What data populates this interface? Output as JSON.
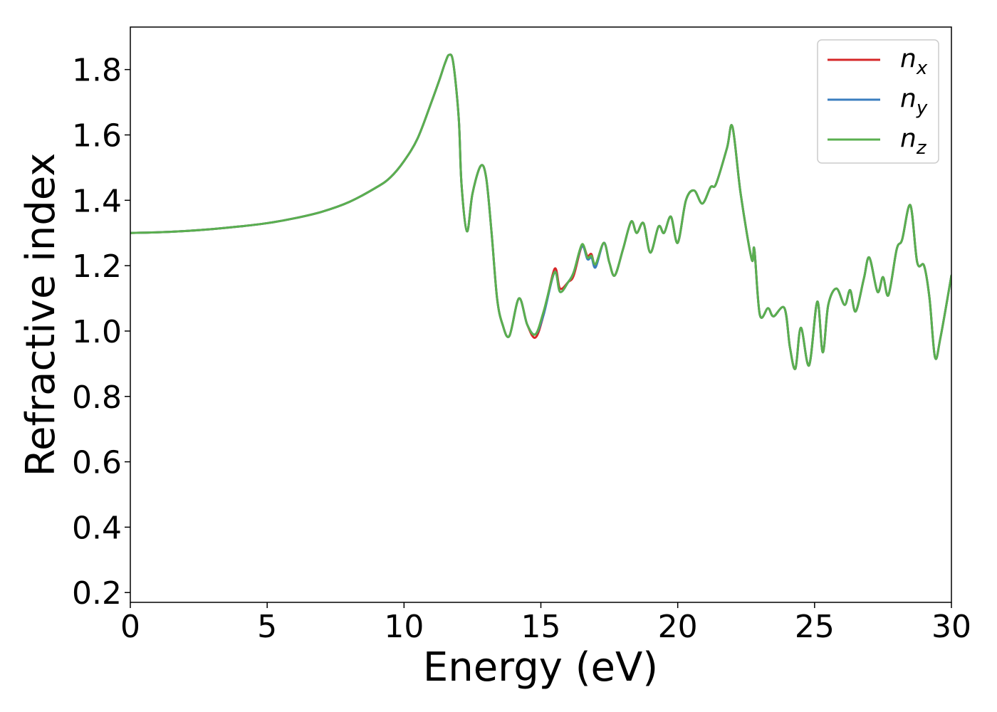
{
  "chart_data": {
    "type": "line",
    "xlabel": "Energy (eV)",
    "ylabel": "Refractive index",
    "xlim": [
      0,
      30
    ],
    "ylim": [
      0.17,
      1.93
    ],
    "xticks": [
      0,
      5,
      10,
      15,
      20,
      25,
      30
    ],
    "xtick_labels": [
      "0",
      "5",
      "10",
      "15",
      "20",
      "25",
      "30"
    ],
    "yticks": [
      0.2,
      0.4,
      0.6,
      0.8,
      1.0,
      1.2,
      1.4,
      1.6,
      1.8
    ],
    "ytick_labels": [
      "0.2",
      "0.4",
      "0.6",
      "0.8",
      "1.0",
      "1.2",
      "1.4",
      "1.6",
      "1.8"
    ],
    "grid": false,
    "legend_position": "top-right",
    "series": [
      {
        "name": "n_x",
        "base": "n",
        "sub": "x",
        "color": "#d62728",
        "x": [
          0,
          1,
          2,
          3,
          4,
          5,
          6,
          7,
          8,
          9,
          9.5,
          10,
          10.5,
          11,
          11.3,
          11.5,
          11.65,
          11.8,
          12.0,
          12.1,
          12.3,
          12.5,
          12.8,
          13.0,
          13.2,
          13.4,
          13.6,
          13.85,
          14.2,
          14.5,
          14.8,
          15.1,
          15.5,
          15.7,
          16.0,
          16.2,
          16.5,
          16.7,
          16.85,
          17.0,
          17.3,
          17.5,
          17.7,
          18.0,
          18.3,
          18.5,
          18.75,
          19.0,
          19.3,
          19.5,
          19.75,
          20.0,
          20.3,
          20.6,
          20.9,
          21.2,
          21.4,
          21.8,
          22.0,
          22.3,
          22.7,
          22.8,
          23.0,
          23.3,
          23.5,
          23.9,
          24.1,
          24.3,
          24.5,
          24.8,
          25.1,
          25.3,
          25.5,
          25.8,
          26.1,
          26.3,
          26.5,
          26.8,
          27.0,
          27.3,
          27.5,
          27.7,
          28.0,
          28.2,
          28.5,
          28.75,
          29.0,
          29.2,
          29.4,
          29.6,
          30.0
        ],
        "y": [
          1.3,
          1.302,
          1.306,
          1.312,
          1.32,
          1.33,
          1.345,
          1.365,
          1.395,
          1.44,
          1.47,
          1.52,
          1.59,
          1.7,
          1.77,
          1.82,
          1.845,
          1.82,
          1.65,
          1.45,
          1.305,
          1.42,
          1.505,
          1.47,
          1.3,
          1.1,
          1.02,
          0.985,
          1.1,
          1.02,
          0.98,
          1.05,
          1.19,
          1.13,
          1.15,
          1.17,
          1.26,
          1.23,
          1.235,
          1.2,
          1.27,
          1.21,
          1.17,
          1.25,
          1.335,
          1.3,
          1.33,
          1.24,
          1.32,
          1.3,
          1.35,
          1.27,
          1.4,
          1.43,
          1.39,
          1.44,
          1.45,
          1.56,
          1.625,
          1.42,
          1.22,
          1.25,
          1.05,
          1.07,
          1.045,
          1.07,
          0.95,
          0.885,
          1.01,
          0.895,
          1.09,
          0.935,
          1.08,
          1.13,
          1.08,
          1.125,
          1.06,
          1.16,
          1.225,
          1.12,
          1.165,
          1.11,
          1.25,
          1.28,
          1.385,
          1.21,
          1.2,
          1.1,
          0.92,
          0.98,
          1.17
        ]
      },
      {
        "name": "n_y",
        "base": "n",
        "sub": "y",
        "color": "#3a7ebf",
        "x": [
          0,
          1,
          2,
          3,
          4,
          5,
          6,
          7,
          8,
          9,
          9.5,
          10,
          10.5,
          11,
          11.3,
          11.5,
          11.65,
          11.8,
          12.0,
          12.1,
          12.3,
          12.5,
          12.8,
          13.0,
          13.2,
          13.4,
          13.6,
          13.85,
          14.2,
          14.5,
          14.8,
          15.1,
          15.5,
          15.7,
          16.0,
          16.2,
          16.5,
          16.7,
          16.85,
          17.0,
          17.3,
          17.5,
          17.7,
          18.0,
          18.3,
          18.5,
          18.75,
          19.0,
          19.3,
          19.5,
          19.75,
          20.0,
          20.3,
          20.6,
          20.9,
          21.2,
          21.4,
          21.8,
          22.0,
          22.3,
          22.7,
          22.8,
          23.0,
          23.3,
          23.5,
          23.9,
          24.1,
          24.3,
          24.5,
          24.8,
          25.1,
          25.3,
          25.5,
          25.8,
          26.1,
          26.3,
          26.5,
          26.8,
          27.0,
          27.3,
          27.5,
          27.7,
          28.0,
          28.2,
          28.5,
          28.75,
          29.0,
          29.2,
          29.4,
          29.6,
          30.0
        ],
        "y": [
          1.3,
          1.302,
          1.306,
          1.312,
          1.32,
          1.33,
          1.345,
          1.365,
          1.395,
          1.44,
          1.47,
          1.52,
          1.59,
          1.7,
          1.77,
          1.82,
          1.845,
          1.82,
          1.65,
          1.45,
          1.305,
          1.42,
          1.505,
          1.47,
          1.3,
          1.1,
          1.02,
          0.985,
          1.1,
          1.02,
          0.99,
          1.05,
          1.18,
          1.12,
          1.15,
          1.18,
          1.26,
          1.22,
          1.225,
          1.195,
          1.27,
          1.21,
          1.17,
          1.25,
          1.335,
          1.3,
          1.33,
          1.24,
          1.32,
          1.3,
          1.35,
          1.27,
          1.4,
          1.43,
          1.39,
          1.44,
          1.45,
          1.56,
          1.625,
          1.42,
          1.22,
          1.25,
          1.05,
          1.07,
          1.045,
          1.07,
          0.95,
          0.885,
          1.01,
          0.895,
          1.09,
          0.935,
          1.08,
          1.13,
          1.08,
          1.125,
          1.06,
          1.16,
          1.225,
          1.12,
          1.165,
          1.11,
          1.25,
          1.28,
          1.385,
          1.21,
          1.2,
          1.1,
          0.92,
          0.98,
          1.17
        ]
      },
      {
        "name": "n_z",
        "base": "n",
        "sub": "z",
        "color": "#5aaf4f",
        "x": [
          0,
          1,
          2,
          3,
          4,
          5,
          6,
          7,
          8,
          9,
          9.5,
          10,
          10.5,
          11,
          11.3,
          11.5,
          11.65,
          11.8,
          12.0,
          12.1,
          12.3,
          12.5,
          12.8,
          13.0,
          13.2,
          13.4,
          13.6,
          13.85,
          14.2,
          14.5,
          14.8,
          15.1,
          15.5,
          15.7,
          16.0,
          16.2,
          16.5,
          16.7,
          16.85,
          17.0,
          17.3,
          17.5,
          17.7,
          18.0,
          18.3,
          18.5,
          18.75,
          19.0,
          19.3,
          19.5,
          19.75,
          20.0,
          20.3,
          20.6,
          20.9,
          21.2,
          21.4,
          21.8,
          22.0,
          22.3,
          22.7,
          22.8,
          23.0,
          23.3,
          23.5,
          23.9,
          24.1,
          24.3,
          24.5,
          24.8,
          25.1,
          25.3,
          25.5,
          25.8,
          26.1,
          26.3,
          26.5,
          26.8,
          27.0,
          27.3,
          27.5,
          27.7,
          28.0,
          28.2,
          28.5,
          28.75,
          29.0,
          29.2,
          29.4,
          29.6,
          30.0
        ],
        "y": [
          1.3,
          1.302,
          1.306,
          1.312,
          1.32,
          1.33,
          1.345,
          1.365,
          1.395,
          1.44,
          1.47,
          1.52,
          1.59,
          1.7,
          1.77,
          1.82,
          1.845,
          1.82,
          1.65,
          1.45,
          1.305,
          1.42,
          1.505,
          1.47,
          1.3,
          1.1,
          1.02,
          0.985,
          1.1,
          1.02,
          0.99,
          1.06,
          1.18,
          1.12,
          1.15,
          1.18,
          1.265,
          1.225,
          1.23,
          1.205,
          1.27,
          1.21,
          1.17,
          1.25,
          1.335,
          1.3,
          1.33,
          1.24,
          1.32,
          1.3,
          1.35,
          1.27,
          1.4,
          1.43,
          1.39,
          1.44,
          1.45,
          1.56,
          1.625,
          1.42,
          1.22,
          1.25,
          1.05,
          1.07,
          1.045,
          1.07,
          0.95,
          0.885,
          1.01,
          0.895,
          1.09,
          0.935,
          1.08,
          1.13,
          1.08,
          1.125,
          1.06,
          1.16,
          1.225,
          1.12,
          1.165,
          1.11,
          1.25,
          1.28,
          1.385,
          1.21,
          1.2,
          1.1,
          0.92,
          0.98,
          1.17
        ]
      }
    ]
  }
}
